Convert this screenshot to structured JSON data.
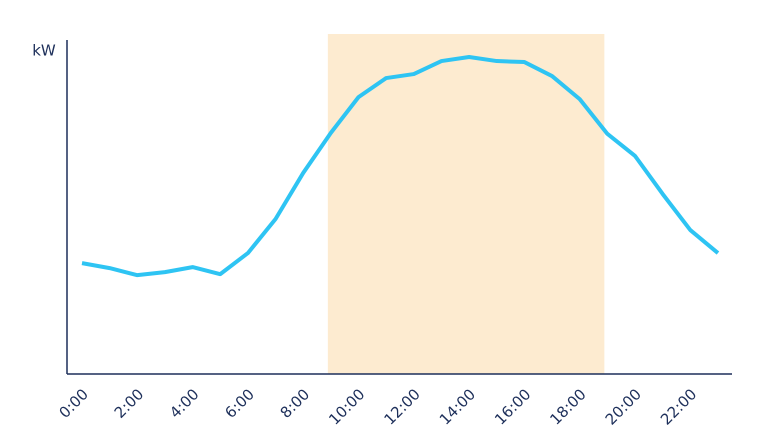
{
  "chart_data": {
    "type": "line",
    "y_label": "kW",
    "categories": [
      "0:00",
      null,
      "2:00",
      null,
      "4:00",
      null,
      "6:00",
      null,
      "8:00",
      null,
      "10:00",
      null,
      "12:00",
      null,
      "14:00",
      null,
      "16:00",
      null,
      "18:00",
      null,
      "20:00",
      null,
      "22:00",
      null
    ],
    "series": [
      {
        "name": "kW",
        "color": "#2ec4f3",
        "values": [
          33.2,
          31.7,
          29.6,
          30.5,
          32.0,
          29.9,
          36.2,
          46.4,
          60.2,
          72.2,
          82.9,
          88.6,
          89.8,
          93.7,
          94.9,
          93.7,
          93.4,
          89.2,
          82.3,
          71.9,
          65.3,
          53.9,
          43.1,
          36.2
        ]
      }
    ],
    "ylim": [
      0,
      100
    ],
    "highlight": {
      "from": 9,
      "to": 19,
      "color": "#fdebd0"
    }
  }
}
